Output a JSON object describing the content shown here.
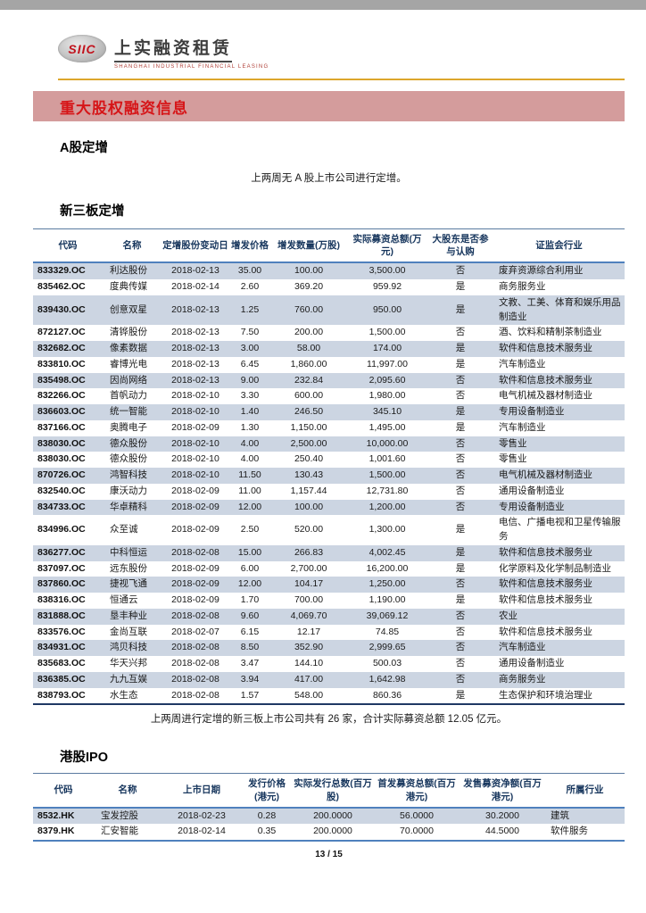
{
  "colors": {
    "topbar": "#a5a5a5",
    "gold": "#dca62c",
    "banner-bg": "#d49c9c",
    "banner-fg": "#d61518",
    "brand-red": "#c1121c",
    "row-shade": "#ccd5e2"
  },
  "logo": {
    "mark": "SIIC",
    "name_cn": "上实融资租赁",
    "name_en": "SHANGHAI INDUSTRIAL FINANCIAL LEASING"
  },
  "banner": {
    "title": "重大股权融资信息"
  },
  "sections": {
    "a_share": {
      "heading": "A股定增",
      "note": "上两周无 A 股上市公司进行定增。"
    },
    "neeq": {
      "heading": "新三板定增",
      "summary": "上两周进行定增的新三板上市公司共有 26 家，合计实际募资总额 12.05 亿元。"
    },
    "hk_ipo": {
      "heading": "港股IPO"
    }
  },
  "neeq_table": {
    "headers": [
      "代码",
      "名称",
      "定增股份变动日",
      "增发价格",
      "增发数量(万股)",
      "实际募资总额(万元)",
      "大股东是否参与认购",
      "证监会行业"
    ],
    "rows": [
      [
        "833329.OC",
        "利达股份",
        "2018-02-13",
        "35.00",
        "100.00",
        "3,500.00",
        "否",
        "废弃资源综合利用业"
      ],
      [
        "835462.OC",
        "度典传媒",
        "2018-02-14",
        "2.60",
        "369.20",
        "959.92",
        "是",
        "商务服务业"
      ],
      [
        "839430.OC",
        "创意双星",
        "2018-02-13",
        "1.25",
        "760.00",
        "950.00",
        "是",
        "文教、工美、体育和娱乐用品制造业"
      ],
      [
        "872127.OC",
        "清铧股份",
        "2018-02-13",
        "7.50",
        "200.00",
        "1,500.00",
        "否",
        "酒、饮料和精制茶制造业"
      ],
      [
        "832682.OC",
        "像素数据",
        "2018-02-13",
        "3.00",
        "58.00",
        "174.00",
        "是",
        "软件和信息技术服务业"
      ],
      [
        "833810.OC",
        "睿博光电",
        "2018-02-13",
        "6.45",
        "1,860.00",
        "11,997.00",
        "是",
        "汽车制造业"
      ],
      [
        "835498.OC",
        "因尚网络",
        "2018-02-13",
        "9.00",
        "232.84",
        "2,095.60",
        "否",
        "软件和信息技术服务业"
      ],
      [
        "832266.OC",
        "首帆动力",
        "2018-02-10",
        "3.30",
        "600.00",
        "1,980.00",
        "否",
        "电气机械及器材制造业"
      ],
      [
        "836603.OC",
        "统一智能",
        "2018-02-10",
        "1.40",
        "246.50",
        "345.10",
        "是",
        "专用设备制造业"
      ],
      [
        "837166.OC",
        "奥腾电子",
        "2018-02-09",
        "1.30",
        "1,150.00",
        "1,495.00",
        "是",
        "汽车制造业"
      ],
      [
        "838030.OC",
        "德众股份",
        "2018-02-10",
        "4.00",
        "2,500.00",
        "10,000.00",
        "否",
        "零售业"
      ],
      [
        "838030.OC",
        "德众股份",
        "2018-02-10",
        "4.00",
        "250.40",
        "1,001.60",
        "否",
        "零售业"
      ],
      [
        "870726.OC",
        "鸿智科技",
        "2018-02-10",
        "11.50",
        "130.43",
        "1,500.00",
        "否",
        "电气机械及器材制造业"
      ],
      [
        "832540.OC",
        "康沃动力",
        "2018-02-09",
        "11.00",
        "1,157.44",
        "12,731.80",
        "否",
        "通用设备制造业"
      ],
      [
        "834733.OC",
        "华卓精科",
        "2018-02-09",
        "12.00",
        "100.00",
        "1,200.00",
        "否",
        "专用设备制造业"
      ],
      [
        "834996.OC",
        "众至诚",
        "2018-02-09",
        "2.50",
        "520.00",
        "1,300.00",
        "是",
        "电信、广播电视和卫星传输服务"
      ],
      [
        "836277.OC",
        "中科恒运",
        "2018-02-08",
        "15.00",
        "266.83",
        "4,002.45",
        "是",
        "软件和信息技术服务业"
      ],
      [
        "837097.OC",
        "远东股份",
        "2018-02-09",
        "6.00",
        "2,700.00",
        "16,200.00",
        "是",
        "化学原料及化学制品制造业"
      ],
      [
        "837860.OC",
        "捷视飞通",
        "2018-02-09",
        "12.00",
        "104.17",
        "1,250.00",
        "否",
        "软件和信息技术服务业"
      ],
      [
        "838316.OC",
        "恒通云",
        "2018-02-09",
        "1.70",
        "700.00",
        "1,190.00",
        "是",
        "软件和信息技术服务业"
      ],
      [
        "831888.OC",
        "垦丰种业",
        "2018-02-08",
        "9.60",
        "4,069.70",
        "39,069.12",
        "否",
        "农业"
      ],
      [
        "833576.OC",
        "金尚互联",
        "2018-02-07",
        "6.15",
        "12.17",
        "74.85",
        "否",
        "软件和信息技术服务业"
      ],
      [
        "834931.OC",
        "鸿贝科技",
        "2018-02-08",
        "8.50",
        "352.90",
        "2,999.65",
        "否",
        "汽车制造业"
      ],
      [
        "835683.OC",
        "华天兴邦",
        "2018-02-08",
        "3.47",
        "144.10",
        "500.03",
        "否",
        "通用设备制造业"
      ],
      [
        "836385.OC",
        "九九互娱",
        "2018-02-08",
        "3.94",
        "417.00",
        "1,642.98",
        "否",
        "商务服务业"
      ],
      [
        "838793.OC",
        "水生态",
        "2018-02-08",
        "1.57",
        "548.00",
        "860.36",
        "是",
        "生态保护和环境治理业"
      ]
    ]
  },
  "hk_table": {
    "headers": [
      "代码",
      "名称",
      "上市日期",
      "发行价格(港元)",
      "实际发行总数(百万股)",
      "首发募资总额(百万港元)",
      "发售募资净额(百万港元)",
      "所属行业"
    ],
    "rows": [
      [
        "8532.HK",
        "宝发控股",
        "2018-02-23",
        "0.28",
        "200.0000",
        "56.0000",
        "30.2000",
        "建筑"
      ],
      [
        "8379.HK",
        "汇安智能",
        "2018-02-14",
        "0.35",
        "200.0000",
        "70.0000",
        "44.5000",
        "软件服务"
      ]
    ]
  },
  "footer": {
    "page_number": "13 / 15"
  }
}
